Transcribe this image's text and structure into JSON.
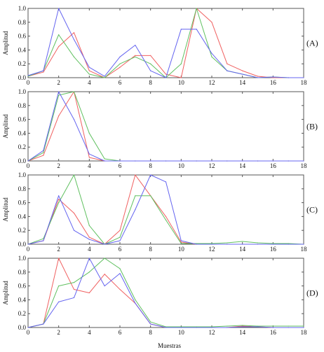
{
  "xlabel": "Muestras",
  "colors": {
    "red": "#f06060",
    "green": "#60c060",
    "blue": "#6464f0",
    "axis": "#555555"
  },
  "chart_data": [
    {
      "type": "line",
      "panel_label": "(A)",
      "ylabel": "Amplitud",
      "xlim": [
        0,
        18
      ],
      "ylim": [
        0,
        1
      ],
      "xticks": [
        "0",
        "2",
        "4",
        "6",
        "8",
        "10",
        "12",
        "14",
        "16",
        "18"
      ],
      "yticks": [
        "0.0",
        "0.2",
        "0.4",
        "0.6",
        "0.8",
        "1.0"
      ],
      "x": [
        0,
        1,
        2,
        3,
        4,
        5,
        6,
        7,
        8,
        9,
        10,
        11,
        12,
        13,
        14,
        15,
        16,
        17,
        18
      ],
      "series": [
        {
          "color": "red",
          "values": [
            0.02,
            0.08,
            0.45,
            0.65,
            0.1,
            0.0,
            0.15,
            0.32,
            0.32,
            0.05,
            0.0,
            1.0,
            0.8,
            0.2,
            0.1,
            0.02,
            0.0,
            0.0,
            0.0
          ]
        },
        {
          "color": "green",
          "values": [
            0.02,
            0.1,
            0.62,
            0.3,
            0.05,
            0.0,
            0.2,
            0.3,
            0.2,
            0.0,
            0.2,
            1.0,
            0.3,
            0.1,
            0.05,
            0.0,
            0.01,
            0.0,
            0.0
          ]
        },
        {
          "color": "blue",
          "values": [
            0.03,
            0.1,
            1.0,
            0.55,
            0.15,
            0.02,
            0.3,
            0.47,
            0.1,
            0.0,
            0.7,
            0.7,
            0.35,
            0.1,
            0.05,
            0.0,
            0.01,
            0.0,
            0.0
          ]
        }
      ]
    },
    {
      "type": "line",
      "panel_label": "(B)",
      "ylabel": "Amplitud",
      "xlim": [
        0,
        18
      ],
      "ylim": [
        0,
        1
      ],
      "xticks": [
        "0",
        "2",
        "4",
        "6",
        "8",
        "10",
        "12",
        "14",
        "16",
        "18"
      ],
      "yticks": [
        "0.0",
        "0.2",
        "0.4",
        "0.6",
        "0.8",
        "1.0"
      ],
      "x": [
        0,
        1,
        2,
        3,
        4,
        5,
        6,
        7,
        8,
        9,
        10,
        11,
        12,
        13,
        14,
        15,
        16,
        17,
        18
      ],
      "series": [
        {
          "color": "red",
          "values": [
            0.0,
            0.08,
            0.65,
            1.0,
            0.05,
            0.0,
            0.0,
            0.0,
            0.0,
            0.0,
            0.0,
            0.0,
            0.0,
            0.0,
            0.0,
            0.0,
            0.0,
            0.0,
            0.0
          ]
        },
        {
          "color": "green",
          "values": [
            0.0,
            0.12,
            0.95,
            1.0,
            0.4,
            0.03,
            0.0,
            0.0,
            0.0,
            0.0,
            0.0,
            0.0,
            0.0,
            0.0,
            0.0,
            0.0,
            0.0,
            0.0,
            0.0
          ]
        },
        {
          "color": "blue",
          "values": [
            0.0,
            0.15,
            1.0,
            0.6,
            0.1,
            0.0,
            0.0,
            0.0,
            0.0,
            0.0,
            0.0,
            0.0,
            0.0,
            0.0,
            0.0,
            0.0,
            0.0,
            0.0,
            0.0
          ]
        }
      ]
    },
    {
      "type": "line",
      "panel_label": "(C)",
      "ylabel": "Amplitud",
      "xlim": [
        0,
        18
      ],
      "ylim": [
        0,
        1
      ],
      "xticks": [
        "0",
        "2",
        "4",
        "6",
        "8",
        "10",
        "12",
        "14",
        "16",
        "18"
      ],
      "yticks": [
        "0.0",
        "0.2",
        "0.4",
        "0.6",
        "0.8",
        "1.0"
      ],
      "x": [
        0,
        1,
        2,
        3,
        4,
        5,
        6,
        7,
        8,
        9,
        10,
        11,
        12,
        13,
        14,
        15,
        16,
        17,
        18
      ],
      "series": [
        {
          "color": "red",
          "values": [
            0.0,
            0.05,
            0.65,
            0.45,
            0.1,
            0.0,
            0.2,
            1.0,
            0.7,
            0.4,
            0.03,
            0.0,
            0.0,
            0.0,
            0.0,
            0.0,
            0.0,
            0.0,
            0.0
          ]
        },
        {
          "color": "green",
          "values": [
            0.0,
            0.08,
            0.6,
            1.0,
            0.27,
            0.0,
            0.1,
            0.7,
            0.7,
            0.35,
            0.01,
            0.01,
            0.01,
            0.02,
            0.04,
            0.02,
            0.01,
            0.01,
            0.0
          ]
        },
        {
          "color": "blue",
          "values": [
            0.0,
            0.05,
            0.7,
            0.2,
            0.07,
            0.0,
            0.05,
            0.5,
            1.0,
            0.9,
            0.05,
            0.0,
            0.0,
            0.0,
            0.0,
            0.0,
            0.0,
            0.0,
            0.0
          ]
        }
      ]
    },
    {
      "type": "line",
      "panel_label": "(D)",
      "ylabel": "Amplitud",
      "xlim": [
        0,
        18
      ],
      "ylim": [
        0,
        1
      ],
      "xticks": [
        "0",
        "2",
        "4",
        "6",
        "8",
        "10",
        "12",
        "14",
        "16",
        "18"
      ],
      "yticks": [
        "0.0",
        "0.2",
        "0.4",
        "0.6",
        "0.8",
        "1.0"
      ],
      "x": [
        0,
        1,
        2,
        3,
        4,
        5,
        6,
        7,
        8,
        9,
        10,
        11,
        12,
        13,
        14,
        15,
        16,
        17,
        18
      ],
      "series": [
        {
          "color": "red",
          "values": [
            0.0,
            0.05,
            1.0,
            0.55,
            0.5,
            0.77,
            0.55,
            0.35,
            0.05,
            0.0,
            0.0,
            0.0,
            0.0,
            0.0,
            0.02,
            0.01,
            0.0,
            0.0,
            0.0
          ]
        },
        {
          "color": "green",
          "values": [
            0.0,
            0.05,
            0.6,
            0.65,
            0.8,
            1.0,
            0.85,
            0.4,
            0.08,
            0.01,
            0.01,
            0.01,
            0.01,
            0.02,
            0.03,
            0.02,
            0.02,
            0.02,
            0.02
          ]
        },
        {
          "color": "blue",
          "values": [
            0.0,
            0.05,
            0.37,
            0.43,
            1.0,
            0.6,
            0.78,
            0.35,
            0.05,
            0.0,
            0.0,
            0.0,
            0.0,
            0.0,
            0.01,
            0.01,
            0.0,
            0.0,
            0.0
          ]
        }
      ]
    }
  ]
}
